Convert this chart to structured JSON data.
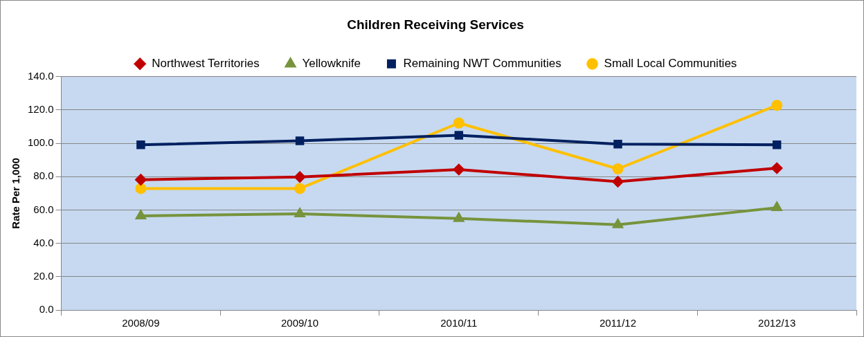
{
  "chart_data": {
    "type": "line",
    "title": "Children Receiving Services",
    "ylabel": "Rate Per 1,000",
    "categories": [
      "2008/09",
      "2009/10",
      "2010/11",
      "2011/12",
      "2012/13"
    ],
    "series": [
      {
        "name": "Northwest Territories",
        "color": "#c00000",
        "marker": "diamond",
        "values": [
          78.2,
          79.8,
          84.3,
          77.0,
          85.1
        ]
      },
      {
        "name": "Yellowknife",
        "color": "#77933c",
        "marker": "triangle",
        "values": [
          56.5,
          57.7,
          54.9,
          51.2,
          61.4
        ]
      },
      {
        "name": "Remaining NWT Communities",
        "color": "#002060",
        "marker": "square",
        "values": [
          99.1,
          101.5,
          104.8,
          99.5,
          99.1
        ]
      },
      {
        "name": "Small Local Communities",
        "color": "#ffc000",
        "marker": "circle",
        "values": [
          72.9,
          72.9,
          112.2,
          84.7,
          122.8
        ]
      }
    ],
    "ylim": [
      0,
      140
    ],
    "yticks": [
      {
        "value": 0,
        "label": "0.0"
      },
      {
        "value": 20,
        "label": "20.0"
      },
      {
        "value": 40,
        "label": "40.0"
      },
      {
        "value": 60,
        "label": "60.0"
      },
      {
        "value": 80,
        "label": "80.0"
      },
      {
        "value": 100,
        "label": "100.0"
      },
      {
        "value": 120,
        "label": "120.0"
      },
      {
        "value": 140,
        "label": "140.0"
      }
    ],
    "grid": "y",
    "legend": "top",
    "line_style": "solid"
  }
}
